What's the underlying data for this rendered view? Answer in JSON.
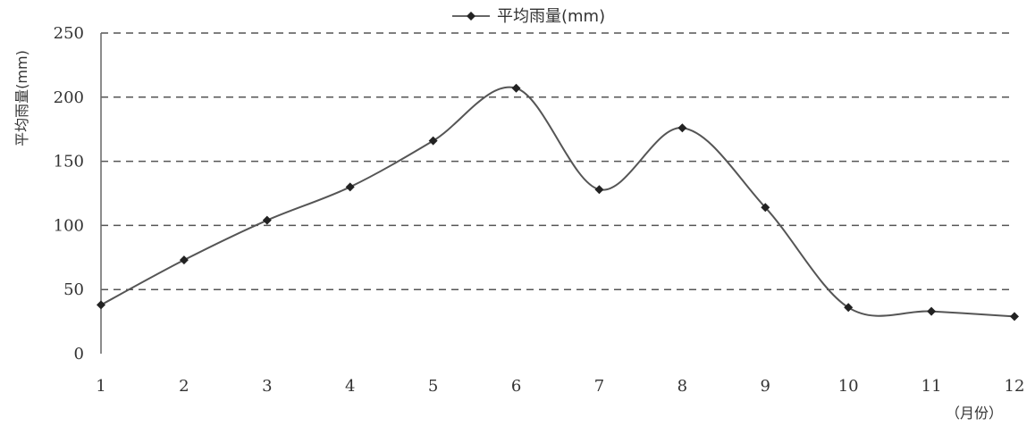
{
  "chart_data": {
    "type": "line",
    "title": "",
    "xlabel": "（月份）",
    "ylabel": "平均雨量(mm)",
    "legend": {
      "position": "top-center",
      "entries": [
        "平均雨量(mm)"
      ]
    },
    "grid": {
      "horizontal": true,
      "style": "dashed"
    },
    "x": [
      1,
      2,
      3,
      4,
      5,
      6,
      7,
      8,
      9,
      10,
      11,
      12
    ],
    "xticks": [
      "1",
      "2",
      "3",
      "4",
      "5",
      "6",
      "7",
      "8",
      "9",
      "10",
      "11",
      "12"
    ],
    "yticks": [
      "0",
      "50",
      "100",
      "150",
      "200",
      "250"
    ],
    "ylim": [
      0,
      250
    ],
    "smooth": true,
    "series": [
      {
        "name": "平均雨量(mm)",
        "color": "#555555",
        "marker": "diamond",
        "values": [
          38,
          73,
          104,
          130,
          166,
          207,
          128,
          176,
          114,
          36,
          33,
          29
        ]
      }
    ]
  }
}
